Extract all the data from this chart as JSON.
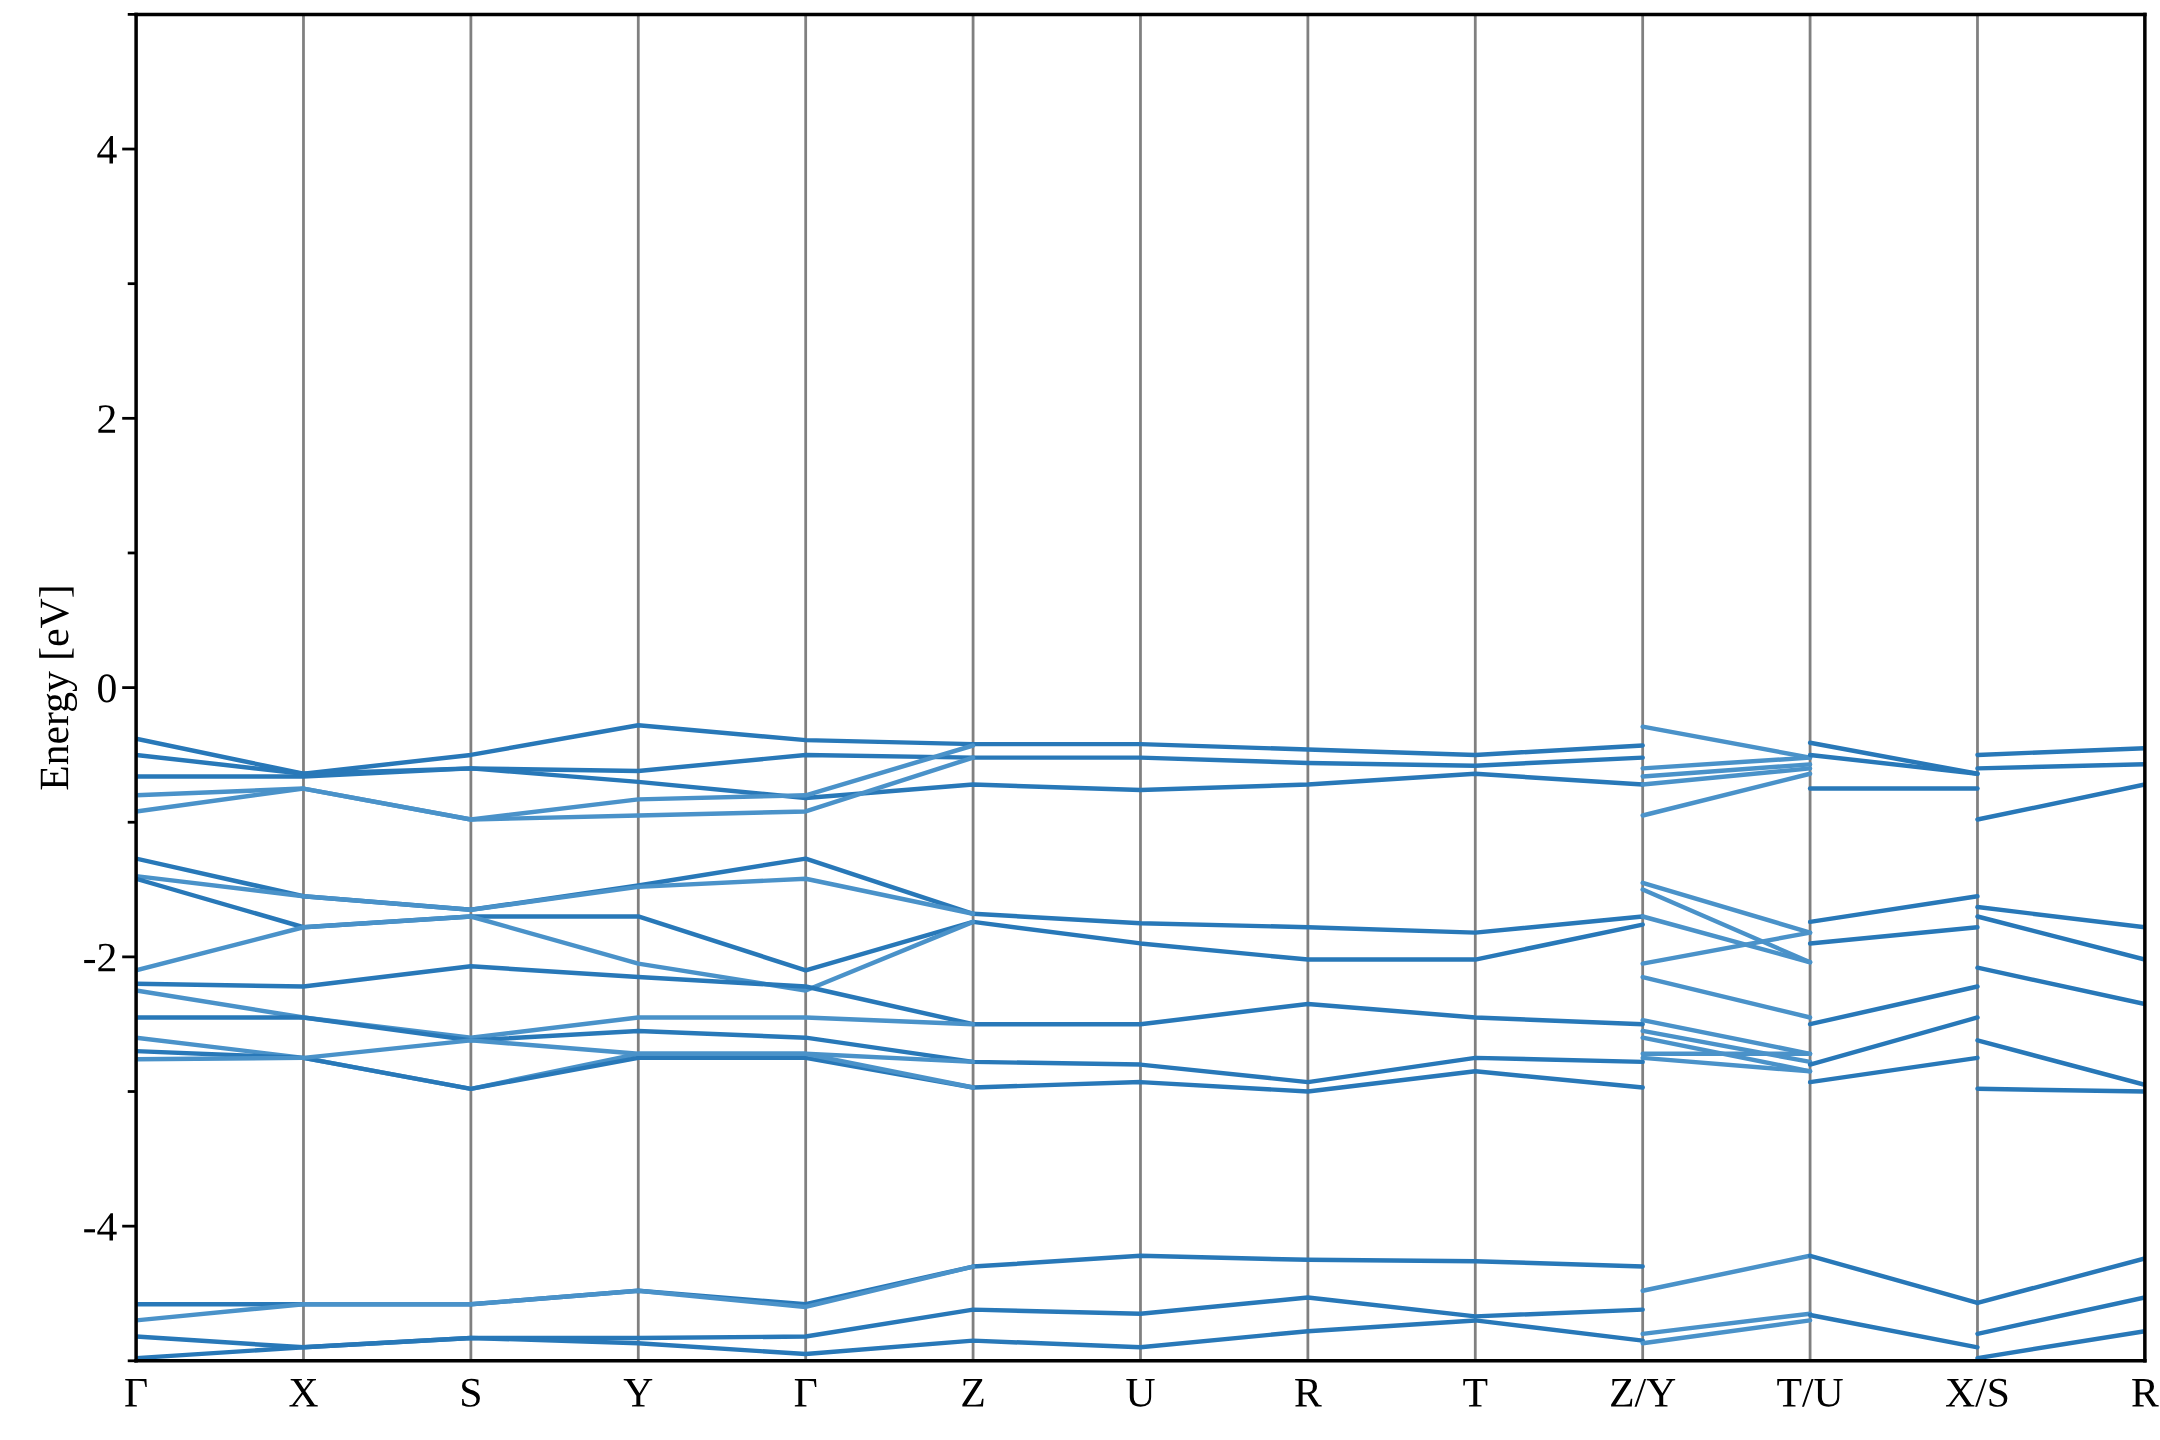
{
  "chart_data": {
    "type": "line",
    "ylabel": "Energy [eV]",
    "ylim": [
      -5,
      5
    ],
    "categories": [
      "Γ",
      "X",
      "S",
      "Y",
      "Γ",
      "Z",
      "U",
      "R",
      "T",
      "Z/Y",
      "T/U",
      "X/S",
      "R"
    ],
    "yticks": [
      {
        "value": -5,
        "label": null
      },
      4,
      {
        "value": 3,
        "label": null
      },
      2,
      {
        "value": 1,
        "label": null
      },
      0,
      {
        "value": -1,
        "label": null
      },
      -2,
      {
        "value": -3,
        "label": null
      },
      -4,
      {
        "value": 5,
        "label": null
      }
    ],
    "grid": "x",
    "legend": false,
    "marker": "none",
    "line_style": "solid",
    "series": [
      {
        "color": "#2878b8",
        "values": [
          -0.38,
          -0.64,
          -0.5,
          -0.28,
          -0.39,
          -0.42,
          -0.42,
          -0.46,
          -0.5,
          -0.43,
          null,
          null,
          null
        ]
      },
      {
        "color": "#2878b8",
        "values": [
          -0.5,
          -0.64,
          -0.6,
          -0.62,
          -0.5,
          -0.52,
          -0.52,
          -0.56,
          -0.58,
          -0.52,
          null,
          null,
          null
        ]
      },
      {
        "color": "#2878b8",
        "values": [
          -0.66,
          -0.66,
          -0.6,
          -0.7,
          -0.82,
          -0.72,
          -0.76,
          -0.72,
          -0.64,
          -0.72,
          null,
          null,
          null
        ]
      },
      {
        "color": "#4a92c9",
        "values": [
          -0.8,
          -0.75,
          -0.98,
          -0.83,
          -0.8,
          -0.43,
          null,
          null,
          null,
          null,
          null,
          null,
          null
        ]
      },
      {
        "color": "#4a92c9",
        "values": [
          -0.92,
          -0.75,
          -0.98,
          -0.95,
          -0.92,
          -0.52,
          null,
          null,
          null,
          null,
          null,
          null,
          null
        ]
      },
      {
        "color": "#2878b8",
        "values": [
          -1.27,
          -1.55,
          -1.65,
          -1.47,
          -1.27,
          -1.68,
          -1.75,
          -1.78,
          -1.82,
          -1.7,
          null,
          null,
          null
        ]
      },
      {
        "color": "#4a92c9",
        "values": [
          -1.4,
          -1.55,
          -1.65,
          -1.48,
          -1.42,
          -1.68,
          null,
          null,
          null,
          null,
          null,
          null,
          null
        ]
      },
      {
        "color": "#2878b8",
        "values": [
          -1.42,
          -1.78,
          -1.7,
          -1.7,
          -2.1,
          -1.74,
          -1.9,
          -2.02,
          -2.02,
          -1.76,
          null,
          null,
          null
        ]
      },
      {
        "color": "#4a92c9",
        "values": [
          -2.1,
          -1.78,
          -1.7,
          -2.05,
          -2.25,
          -1.74,
          null,
          null,
          null,
          null,
          null,
          null,
          null
        ]
      },
      {
        "color": "#2878b8",
        "values": [
          -2.2,
          -2.22,
          -2.07,
          -2.15,
          -2.22,
          -2.5,
          -2.5,
          -2.35,
          -2.45,
          -2.5,
          null,
          null,
          null
        ]
      },
      {
        "color": "#4a92c9",
        "values": [
          -2.25,
          -2.45,
          -2.6,
          -2.45,
          -2.45,
          -2.5,
          null,
          null,
          null,
          null,
          null,
          null,
          null
        ]
      },
      {
        "color": "#2878b8",
        "values": [
          -2.45,
          -2.45,
          -2.62,
          -2.55,
          -2.6,
          -2.78,
          -2.8,
          -2.93,
          -2.75,
          -2.78,
          null,
          null,
          null
        ]
      },
      {
        "color": "#4a92c9",
        "values": [
          -2.6,
          -2.75,
          -2.98,
          -2.72,
          -2.72,
          -2.78,
          null,
          null,
          null,
          null,
          null,
          null,
          null
        ]
      },
      {
        "color": "#2878b8",
        "values": [
          -2.7,
          -2.75,
          -2.98,
          -2.75,
          -2.75,
          -2.97,
          -2.93,
          -3.0,
          -2.85,
          -2.97,
          null,
          null,
          null
        ]
      },
      {
        "color": "#4a92c9",
        "values": [
          -2.76,
          -2.75,
          -2.62,
          -2.72,
          -2.72,
          -2.97,
          null,
          null,
          null,
          null,
          null,
          null,
          null
        ]
      },
      {
        "color": "#2878b8",
        "values": [
          -4.58,
          -4.58,
          -4.58,
          -4.48,
          -4.58,
          -4.3,
          -4.22,
          -4.25,
          -4.26,
          -4.3,
          null,
          null,
          null
        ]
      },
      {
        "color": "#4a92c9",
        "values": [
          -4.7,
          -4.58,
          -4.58,
          -4.48,
          -4.6,
          -4.3,
          null,
          null,
          null,
          null,
          null,
          null,
          null
        ]
      },
      {
        "color": "#2878b8",
        "values": [
          -4.82,
          -4.9,
          -4.83,
          -4.83,
          -4.82,
          -4.62,
          -4.65,
          -4.53,
          -4.67,
          -4.62,
          null,
          null,
          null
        ]
      },
      {
        "color": "#2878b8",
        "values": [
          -4.98,
          -4.9,
          -4.83,
          -4.87,
          -4.95,
          -4.85,
          -4.9,
          -4.78,
          -4.7,
          -4.85,
          null,
          null,
          null
        ]
      },
      {
        "color": "#4a92c9",
        "values": [
          null,
          null,
          null,
          null,
          null,
          null,
          null,
          null,
          null,
          -0.29,
          -0.52,
          null,
          null
        ]
      },
      {
        "color": "#4a92c9",
        "values": [
          null,
          null,
          null,
          null,
          null,
          null,
          null,
          null,
          null,
          -0.6,
          -0.52,
          null,
          null
        ]
      },
      {
        "color": "#4a92c9",
        "values": [
          null,
          null,
          null,
          null,
          null,
          null,
          null,
          null,
          null,
          -0.66,
          -0.57,
          null,
          null
        ]
      },
      {
        "color": "#4a92c9",
        "values": [
          null,
          null,
          null,
          null,
          null,
          null,
          null,
          null,
          null,
          -0.72,
          -0.6,
          null,
          null
        ]
      },
      {
        "color": "#4a92c9",
        "values": [
          null,
          null,
          null,
          null,
          null,
          null,
          null,
          null,
          null,
          -0.95,
          -0.64,
          null,
          null
        ]
      },
      {
        "color": "#4a92c9",
        "values": [
          null,
          null,
          null,
          null,
          null,
          null,
          null,
          null,
          null,
          -1.45,
          -1.82,
          null,
          null
        ]
      },
      {
        "color": "#4a92c9",
        "values": [
          null,
          null,
          null,
          null,
          null,
          null,
          null,
          null,
          null,
          -1.5,
          -2.04,
          null,
          null
        ]
      },
      {
        "color": "#4a92c9",
        "values": [
          null,
          null,
          null,
          null,
          null,
          null,
          null,
          null,
          null,
          -1.7,
          -2.04,
          null,
          null
        ]
      },
      {
        "color": "#4a92c9",
        "values": [
          null,
          null,
          null,
          null,
          null,
          null,
          null,
          null,
          null,
          -2.05,
          -1.82,
          null,
          null
        ]
      },
      {
        "color": "#4a92c9",
        "values": [
          null,
          null,
          null,
          null,
          null,
          null,
          null,
          null,
          null,
          -2.15,
          -2.45,
          null,
          null
        ]
      },
      {
        "color": "#4a92c9",
        "values": [
          null,
          null,
          null,
          null,
          null,
          null,
          null,
          null,
          null,
          -2.47,
          -2.72,
          null,
          null
        ]
      },
      {
        "color": "#4a92c9",
        "values": [
          null,
          null,
          null,
          null,
          null,
          null,
          null,
          null,
          null,
          -2.55,
          -2.78,
          null,
          null
        ]
      },
      {
        "color": "#4a92c9",
        "values": [
          null,
          null,
          null,
          null,
          null,
          null,
          null,
          null,
          null,
          -2.6,
          -2.85,
          null,
          null
        ]
      },
      {
        "color": "#4a92c9",
        "values": [
          null,
          null,
          null,
          null,
          null,
          null,
          null,
          null,
          null,
          -2.72,
          -2.72,
          null,
          null
        ]
      },
      {
        "color": "#4a92c9",
        "values": [
          null,
          null,
          null,
          null,
          null,
          null,
          null,
          null,
          null,
          -2.75,
          -2.85,
          null,
          null
        ]
      },
      {
        "color": "#4a92c9",
        "values": [
          null,
          null,
          null,
          null,
          null,
          null,
          null,
          null,
          null,
          -4.48,
          -4.22,
          null,
          null
        ]
      },
      {
        "color": "#4a92c9",
        "values": [
          null,
          null,
          null,
          null,
          null,
          null,
          null,
          null,
          null,
          -4.8,
          -4.65,
          null,
          null
        ]
      },
      {
        "color": "#4a92c9",
        "values": [
          null,
          null,
          null,
          null,
          null,
          null,
          null,
          null,
          null,
          -4.87,
          -4.7,
          null,
          null
        ]
      },
      {
        "color": "#2878b8",
        "values": [
          null,
          null,
          null,
          null,
          null,
          null,
          null,
          null,
          null,
          null,
          -0.41,
          -0.64,
          null
        ]
      },
      {
        "color": "#2878b8",
        "values": [
          null,
          null,
          null,
          null,
          null,
          null,
          null,
          null,
          null,
          null,
          -0.5,
          -0.64,
          null
        ]
      },
      {
        "color": "#2878b8",
        "values": [
          null,
          null,
          null,
          null,
          null,
          null,
          null,
          null,
          null,
          null,
          -0.75,
          -0.75,
          null
        ]
      },
      {
        "color": "#2878b8",
        "values": [
          null,
          null,
          null,
          null,
          null,
          null,
          null,
          null,
          null,
          null,
          -1.74,
          -1.55,
          null
        ]
      },
      {
        "color": "#2878b8",
        "values": [
          null,
          null,
          null,
          null,
          null,
          null,
          null,
          null,
          null,
          null,
          -1.9,
          -1.78,
          null
        ]
      },
      {
        "color": "#2878b8",
        "values": [
          null,
          null,
          null,
          null,
          null,
          null,
          null,
          null,
          null,
          null,
          -2.5,
          -2.22,
          null
        ]
      },
      {
        "color": "#2878b8",
        "values": [
          null,
          null,
          null,
          null,
          null,
          null,
          null,
          null,
          null,
          null,
          -2.8,
          -2.45,
          null
        ]
      },
      {
        "color": "#2878b8",
        "values": [
          null,
          null,
          null,
          null,
          null,
          null,
          null,
          null,
          null,
          null,
          -2.93,
          -2.75,
          null
        ]
      },
      {
        "color": "#2878b8",
        "values": [
          null,
          null,
          null,
          null,
          null,
          null,
          null,
          null,
          null,
          null,
          -4.22,
          -4.57,
          null
        ]
      },
      {
        "color": "#2878b8",
        "values": [
          null,
          null,
          null,
          null,
          null,
          null,
          null,
          null,
          null,
          null,
          -4.66,
          -4.9,
          null
        ]
      },
      {
        "color": "#2878b8",
        "values": [
          null,
          null,
          null,
          null,
          null,
          null,
          null,
          null,
          null,
          null,
          null,
          -0.5,
          -0.45
        ]
      },
      {
        "color": "#2878b8",
        "values": [
          null,
          null,
          null,
          null,
          null,
          null,
          null,
          null,
          null,
          null,
          null,
          -0.6,
          -0.57
        ]
      },
      {
        "color": "#2878b8",
        "values": [
          null,
          null,
          null,
          null,
          null,
          null,
          null,
          null,
          null,
          null,
          null,
          -0.98,
          -0.72
        ]
      },
      {
        "color": "#2878b8",
        "values": [
          null,
          null,
          null,
          null,
          null,
          null,
          null,
          null,
          null,
          null,
          null,
          -1.63,
          -1.78
        ]
      },
      {
        "color": "#2878b8",
        "values": [
          null,
          null,
          null,
          null,
          null,
          null,
          null,
          null,
          null,
          null,
          null,
          -1.7,
          -2.02
        ]
      },
      {
        "color": "#2878b8",
        "values": [
          null,
          null,
          null,
          null,
          null,
          null,
          null,
          null,
          null,
          null,
          null,
          -2.08,
          -2.35
        ]
      },
      {
        "color": "#2878b8",
        "values": [
          null,
          null,
          null,
          null,
          null,
          null,
          null,
          null,
          null,
          null,
          null,
          -2.62,
          -2.95
        ]
      },
      {
        "color": "#2878b8",
        "values": [
          null,
          null,
          null,
          null,
          null,
          null,
          null,
          null,
          null,
          null,
          null,
          -2.98,
          -3.0
        ]
      },
      {
        "color": "#2878b8",
        "values": [
          null,
          null,
          null,
          null,
          null,
          null,
          null,
          null,
          null,
          null,
          null,
          -4.57,
          -4.24
        ]
      },
      {
        "color": "#2878b8",
        "values": [
          null,
          null,
          null,
          null,
          null,
          null,
          null,
          null,
          null,
          null,
          null,
          -4.8,
          -4.53
        ]
      },
      {
        "color": "#2878b8",
        "values": [
          null,
          null,
          null,
          null,
          null,
          null,
          null,
          null,
          null,
          null,
          null,
          -4.98,
          -4.78
        ]
      }
    ]
  }
}
